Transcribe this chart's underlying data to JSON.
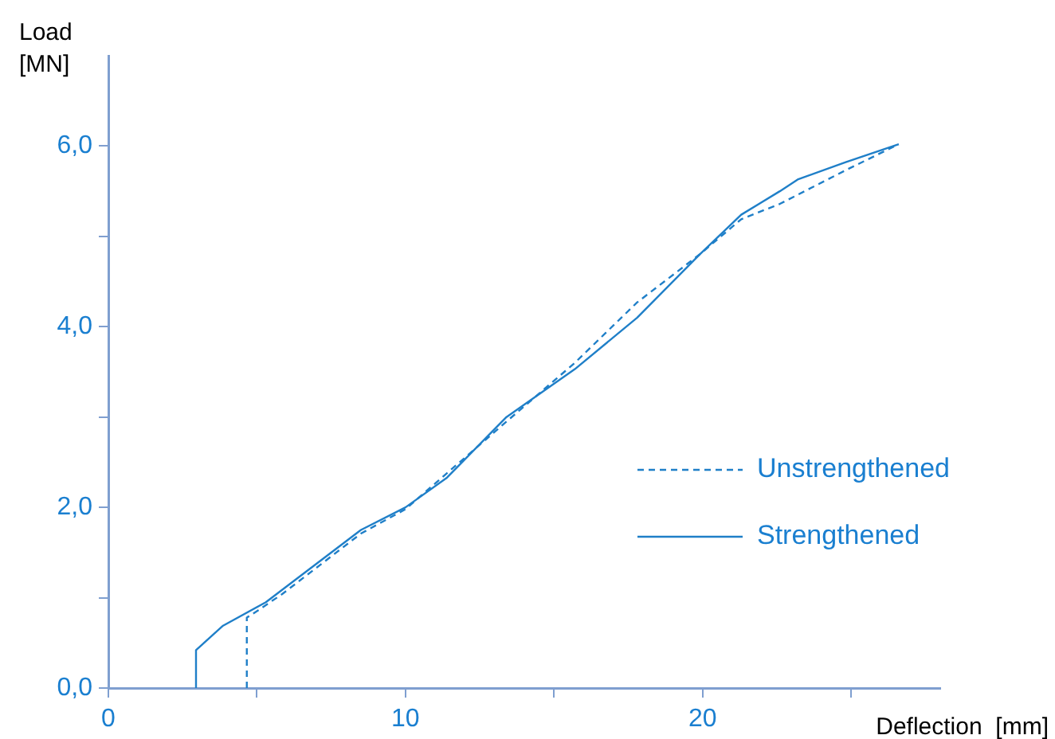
{
  "chart_data": {
    "type": "line",
    "xlabel": "Deflection  [mm]",
    "ylabel": "Load [MN]",
    "xlim": [
      0,
      28
    ],
    "ylim": [
      0,
      7
    ],
    "xticks": [
      0,
      {
        "value": 5,
        "label": null
      },
      10,
      {
        "value": 15,
        "label": null
      },
      20,
      {
        "value": 25,
        "label": null
      }
    ],
    "yticks": [
      {
        "value": 0,
        "label": "0,0"
      },
      {
        "value": 1,
        "label": null
      },
      {
        "value": 2,
        "label": "2,0"
      },
      {
        "value": 3,
        "label": null
      },
      {
        "value": 4,
        "label": "4,0"
      },
      {
        "value": 5,
        "label": null
      },
      {
        "value": 6,
        "label": "6,0"
      }
    ],
    "grid": false,
    "legend": "right",
    "marker": "none",
    "series": [
      {
        "name": "Unstrengthened",
        "color": "#1f7fc8",
        "line_style": "dashed",
        "x": [
          4.66,
          4.66,
          5.04,
          5.85,
          8.5,
          10,
          13.4,
          15.7,
          17.8,
          19.9,
          21.3,
          22.6,
          24.8,
          26.6
        ],
        "values": [
          0,
          0.78,
          0.86,
          1.04,
          1.71,
          1.98,
          2.95,
          3.6,
          4.27,
          4.8,
          5.19,
          5.36,
          5.73,
          6.02
        ]
      },
      {
        "name": "Strengthened",
        "color": "#1f7fc8",
        "line_style": "solid",
        "x": [
          2.95,
          2.95,
          3.86,
          5.3,
          8.5,
          10,
          11.4,
          13.4,
          15.7,
          17.8,
          19.9,
          21.3,
          22.6,
          23.2,
          24.8,
          26.6
        ],
        "values": [
          0,
          0.42,
          0.69,
          0.95,
          1.75,
          2,
          2.33,
          3,
          3.53,
          4.1,
          4.8,
          5.24,
          5.5,
          5.63,
          5.82,
          6.02
        ]
      }
    ]
  }
}
